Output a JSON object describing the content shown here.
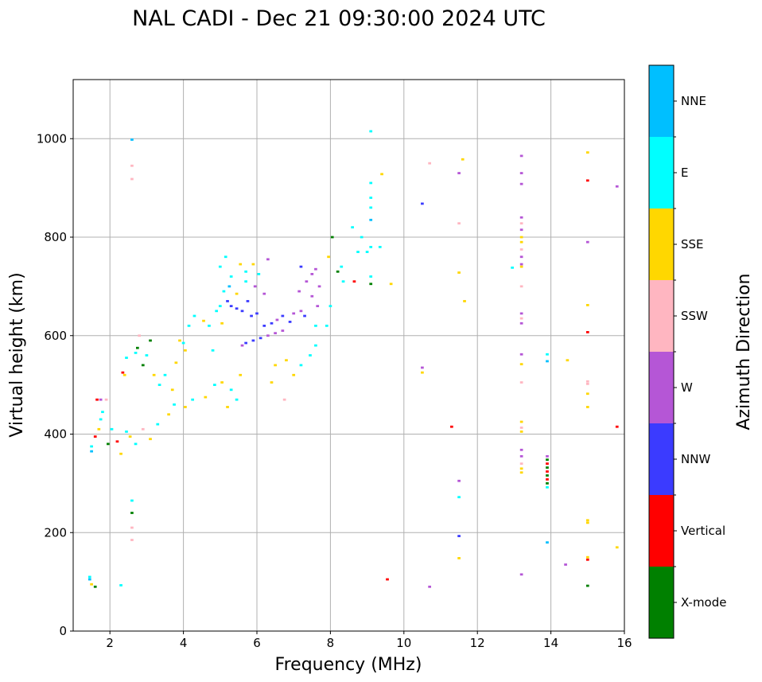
{
  "chart_data": {
    "type": "scatter",
    "title": "NAL CADI - Dec 21 09:30:00 2024 UTC",
    "xlabel": "Frequency (MHz)",
    "ylabel": "Virtual height (km)",
    "xlim": [
      1,
      16
    ],
    "ylim": [
      0,
      1120
    ],
    "xticks": [
      2,
      4,
      6,
      8,
      10,
      12,
      14,
      16
    ],
    "yticks": [
      0,
      200,
      400,
      600,
      800,
      1000
    ],
    "grid": true,
    "colorbar": {
      "label": "Azimuth Direction",
      "categories": [
        {
          "name": "X-mode",
          "color": "#008000"
        },
        {
          "name": "Vertical",
          "color": "#ff0000"
        },
        {
          "name": "NNW",
          "color": "#3b3bff"
        },
        {
          "name": "W",
          "color": "#b556d6"
        },
        {
          "name": "SSW",
          "color": "#ffb6c1"
        },
        {
          "name": "SSE",
          "color": "#ffd700"
        },
        {
          "name": "E",
          "color": "#00ffff"
        },
        {
          "name": "NNE",
          "color": "#00bfff"
        }
      ]
    },
    "point_cell": {
      "df_mhz": 0.05,
      "dh_km": 5
    },
    "points": [
      [
        1.45,
        105,
        "NNE"
      ],
      [
        1.45,
        110,
        "E"
      ],
      [
        1.5,
        95,
        "SSE"
      ],
      [
        1.6,
        90,
        "X-mode"
      ],
      [
        2.3,
        93,
        "E"
      ],
      [
        2.6,
        998,
        "NNE"
      ],
      [
        2.6,
        945,
        "SSW"
      ],
      [
        2.6,
        918,
        "SSW"
      ],
      [
        2.6,
        265,
        "E"
      ],
      [
        2.6,
        240,
        "X-mode"
      ],
      [
        2.6,
        210,
        "SSW"
      ],
      [
        2.6,
        185,
        "SSW"
      ],
      [
        1.5,
        375,
        "E"
      ],
      [
        1.5,
        365,
        "NNE"
      ],
      [
        1.6,
        395,
        "Vertical"
      ],
      [
        1.7,
        410,
        "SSE"
      ],
      [
        1.75,
        430,
        "E"
      ],
      [
        1.8,
        445,
        "E"
      ],
      [
        1.65,
        470,
        "Vertical"
      ],
      [
        1.75,
        470,
        "W"
      ],
      [
        1.9,
        470,
        "SSW"
      ],
      [
        1.95,
        380,
        "X-mode"
      ],
      [
        2.05,
        410,
        "E"
      ],
      [
        2.2,
        385,
        "Vertical"
      ],
      [
        2.35,
        525,
        "Vertical"
      ],
      [
        2.4,
        520,
        "SSE"
      ],
      [
        2.45,
        555,
        "E"
      ],
      [
        2.7,
        565,
        "E"
      ],
      [
        2.75,
        575,
        "X-mode"
      ],
      [
        2.8,
        600,
        "SSW"
      ],
      [
        2.9,
        540,
        "X-mode"
      ],
      [
        3.0,
        560,
        "E"
      ],
      [
        3.1,
        590,
        "X-mode"
      ],
      [
        3.2,
        520,
        "SSE"
      ],
      [
        3.35,
        500,
        "E"
      ],
      [
        3.5,
        520,
        "E"
      ],
      [
        3.7,
        490,
        "SSE"
      ],
      [
        3.8,
        545,
        "SSE"
      ],
      [
        3.9,
        590,
        "SSE"
      ],
      [
        4.0,
        585,
        "E"
      ],
      [
        4.05,
        570,
        "SSE"
      ],
      [
        4.15,
        620,
        "E"
      ],
      [
        4.3,
        640,
        "E"
      ],
      [
        4.55,
        630,
        "SSE"
      ],
      [
        4.7,
        620,
        "E"
      ],
      [
        4.8,
        570,
        "E"
      ],
      [
        4.9,
        650,
        "E"
      ],
      [
        5.0,
        660,
        "E"
      ],
      [
        5.05,
        625,
        "SSE"
      ],
      [
        2.3,
        360,
        "SSE"
      ],
      [
        2.45,
        405,
        "E"
      ],
      [
        2.55,
        395,
        "SSE"
      ],
      [
        2.7,
        380,
        "E"
      ],
      [
        2.9,
        410,
        "SSW"
      ],
      [
        3.1,
        390,
        "SSE"
      ],
      [
        3.3,
        420,
        "E"
      ],
      [
        3.6,
        440,
        "SSE"
      ],
      [
        3.75,
        460,
        "E"
      ],
      [
        4.05,
        455,
        "SSE"
      ],
      [
        4.25,
        470,
        "E"
      ],
      [
        4.6,
        475,
        "SSE"
      ],
      [
        4.85,
        500,
        "E"
      ],
      [
        5.05,
        505,
        "SSE"
      ],
      [
        5.3,
        490,
        "E"
      ],
      [
        5.55,
        520,
        "SSE"
      ],
      [
        5.2,
        455,
        "SSE"
      ],
      [
        5.45,
        470,
        "E"
      ],
      [
        5.0,
        740,
        "E"
      ],
      [
        5.15,
        760,
        "E"
      ],
      [
        5.3,
        720,
        "E"
      ],
      [
        5.55,
        745,
        "SSE"
      ],
      [
        5.7,
        730,
        "E"
      ],
      [
        5.9,
        745,
        "SSE"
      ],
      [
        6.05,
        725,
        "E"
      ],
      [
        6.3,
        755,
        "W"
      ],
      [
        5.1,
        690,
        "E"
      ],
      [
        5.25,
        700,
        "NNE"
      ],
      [
        5.45,
        685,
        "SSE"
      ],
      [
        5.7,
        710,
        "E"
      ],
      [
        5.95,
        700,
        "W"
      ],
      [
        6.2,
        685,
        "W"
      ],
      [
        5.2,
        670,
        "NNW"
      ],
      [
        5.3,
        660,
        "NNW"
      ],
      [
        5.45,
        655,
        "NNW"
      ],
      [
        5.6,
        650,
        "NNW"
      ],
      [
        5.75,
        670,
        "NNW"
      ],
      [
        5.85,
        640,
        "NNW"
      ],
      [
        6.0,
        645,
        "NNW"
      ],
      [
        5.7,
        585,
        "NNW"
      ],
      [
        5.9,
        590,
        "NNW"
      ],
      [
        6.1,
        595,
        "NNW"
      ],
      [
        6.3,
        600,
        "W"
      ],
      [
        6.5,
        605,
        "W"
      ],
      [
        6.7,
        610,
        "W"
      ],
      [
        5.6,
        580,
        "W"
      ],
      [
        6.2,
        620,
        "NNW"
      ],
      [
        6.4,
        625,
        "NNW"
      ],
      [
        6.55,
        632,
        "W"
      ],
      [
        6.7,
        640,
        "NNW"
      ],
      [
        6.9,
        628,
        "NNW"
      ],
      [
        7.0,
        645,
        "W"
      ],
      [
        7.2,
        650,
        "W"
      ],
      [
        7.3,
        640,
        "NNW"
      ],
      [
        7.15,
        690,
        "W"
      ],
      [
        7.35,
        710,
        "W"
      ],
      [
        7.5,
        725,
        "W"
      ],
      [
        7.6,
        735,
        "W"
      ],
      [
        7.2,
        740,
        "NNW"
      ],
      [
        7.7,
        700,
        "W"
      ],
      [
        7.65,
        660,
        "W"
      ],
      [
        7.5,
        680,
        "W"
      ],
      [
        6.5,
        540,
        "SSE"
      ],
      [
        6.8,
        550,
        "SSE"
      ],
      [
        7.0,
        520,
        "SSE"
      ],
      [
        7.2,
        540,
        "E"
      ],
      [
        7.45,
        560,
        "E"
      ],
      [
        7.6,
        580,
        "E"
      ],
      [
        6.4,
        505,
        "SSE"
      ],
      [
        6.75,
        470,
        "SSW"
      ],
      [
        7.6,
        620,
        "E"
      ],
      [
        7.9,
        620,
        "E"
      ],
      [
        8.0,
        660,
        "E"
      ],
      [
        8.2,
        730,
        "X-mode"
      ],
      [
        7.95,
        760,
        "SSE"
      ],
      [
        8.05,
        800,
        "X-mode"
      ],
      [
        8.3,
        740,
        "E"
      ],
      [
        8.35,
        710,
        "E"
      ],
      [
        8.6,
        820,
        "E"
      ],
      [
        8.65,
        710,
        "Vertical"
      ],
      [
        8.75,
        770,
        "E"
      ],
      [
        8.85,
        800,
        "E"
      ],
      [
        9.0,
        770,
        "E"
      ],
      [
        9.1,
        780,
        "E"
      ],
      [
        9.35,
        780,
        "E"
      ],
      [
        9.65,
        705,
        "SSE"
      ],
      [
        9.1,
        835,
        "NNE"
      ],
      [
        9.1,
        860,
        "E"
      ],
      [
        9.1,
        880,
        "E"
      ],
      [
        9.1,
        910,
        "E"
      ],
      [
        9.1,
        1015,
        "E"
      ],
      [
        9.4,
        928,
        "SSE"
      ],
      [
        9.1,
        720,
        "E"
      ],
      [
        9.1,
        705,
        "X-mode"
      ],
      [
        9.55,
        105,
        "Vertical"
      ],
      [
        10.5,
        868,
        "NNW"
      ],
      [
        10.5,
        535,
        "W"
      ],
      [
        10.5,
        525,
        "SSE"
      ],
      [
        10.7,
        90,
        "W"
      ],
      [
        10.7,
        950,
        "SSW"
      ],
      [
        11.3,
        415,
        "Vertical"
      ],
      [
        11.6,
        958,
        "SSE"
      ],
      [
        11.5,
        930,
        "W"
      ],
      [
        11.5,
        828,
        "SSW"
      ],
      [
        11.5,
        728,
        "SSE"
      ],
      [
        11.65,
        670,
        "SSE"
      ],
      [
        11.5,
        305,
        "W"
      ],
      [
        11.5,
        272,
        "E"
      ],
      [
        11.5,
        193,
        "NNW"
      ],
      [
        11.5,
        148,
        "SSE"
      ],
      [
        12.95,
        738,
        "E"
      ],
      [
        13.2,
        965,
        "W"
      ],
      [
        13.2,
        930,
        "W"
      ],
      [
        13.2,
        908,
        "W"
      ],
      [
        13.2,
        840,
        "W"
      ],
      [
        13.2,
        828,
        "SSW"
      ],
      [
        13.2,
        815,
        "W"
      ],
      [
        13.2,
        800,
        "SSE"
      ],
      [
        13.2,
        790,
        "SSE"
      ],
      [
        13.2,
        775,
        "SSW"
      ],
      [
        13.2,
        760,
        "W"
      ],
      [
        13.2,
        745,
        "W"
      ],
      [
        13.2,
        740,
        "SSE"
      ],
      [
        13.2,
        700,
        "SSW"
      ],
      [
        13.2,
        645,
        "W"
      ],
      [
        13.2,
        635,
        "SSW"
      ],
      [
        13.2,
        625,
        "W"
      ],
      [
        13.2,
        562,
        "W"
      ],
      [
        13.2,
        542,
        "SSE"
      ],
      [
        13.2,
        505,
        "SSW"
      ],
      [
        13.2,
        425,
        "SSE"
      ],
      [
        13.2,
        413,
        "SSW"
      ],
      [
        13.2,
        405,
        "SSE"
      ],
      [
        13.2,
        368,
        "W"
      ],
      [
        13.2,
        355,
        "W"
      ],
      [
        13.2,
        340,
        "SSW"
      ],
      [
        13.2,
        330,
        "SSE"
      ],
      [
        13.2,
        322,
        "SSE"
      ],
      [
        13.2,
        115,
        "W"
      ],
      [
        13.9,
        355,
        "W"
      ],
      [
        13.9,
        348,
        "X-mode"
      ],
      [
        13.9,
        340,
        "Vertical"
      ],
      [
        13.9,
        332,
        "X-mode"
      ],
      [
        13.9,
        324,
        "Vertical"
      ],
      [
        13.9,
        316,
        "X-mode"
      ],
      [
        13.9,
        308,
        "Vertical"
      ],
      [
        13.9,
        300,
        "X-mode"
      ],
      [
        13.9,
        292,
        "E"
      ],
      [
        13.9,
        562,
        "E"
      ],
      [
        13.9,
        548,
        "NNE"
      ],
      [
        13.9,
        180,
        "NNE"
      ],
      [
        14.45,
        550,
        "SSE"
      ],
      [
        14.4,
        135,
        "W"
      ],
      [
        15.0,
        972,
        "SSE"
      ],
      [
        15.0,
        915,
        "Vertical"
      ],
      [
        15.0,
        790,
        "W"
      ],
      [
        15.0,
        662,
        "SSE"
      ],
      [
        15.0,
        607,
        "Vertical"
      ],
      [
        15.0,
        507,
        "SSW"
      ],
      [
        15.0,
        502,
        "SSW"
      ],
      [
        15.0,
        482,
        "SSE"
      ],
      [
        15.0,
        455,
        "SSE"
      ],
      [
        15.0,
        225,
        "SSE"
      ],
      [
        15.0,
        220,
        "SSE"
      ],
      [
        15.0,
        150,
        "SSE"
      ],
      [
        15.0,
        145,
        "Vertical"
      ],
      [
        15.0,
        92,
        "X-mode"
      ],
      [
        15.8,
        903,
        "W"
      ],
      [
        15.8,
        415,
        "Vertical"
      ],
      [
        15.8,
        170,
        "SSE"
      ]
    ]
  }
}
